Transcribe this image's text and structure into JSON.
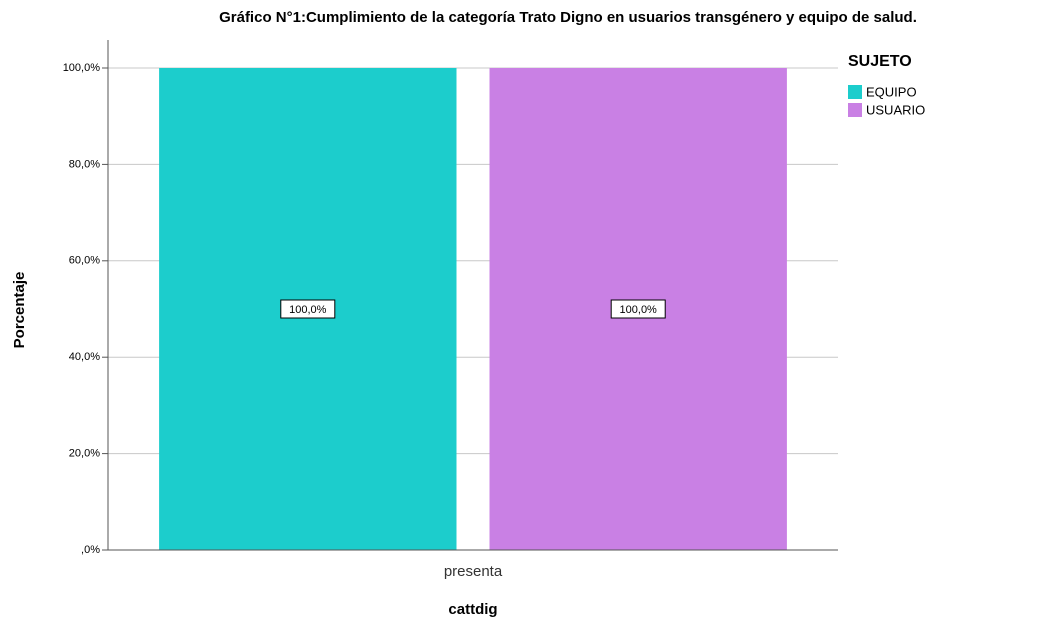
{
  "chart_data": {
    "type": "bar",
    "title": "Gráfico N°1:Cumplimiento de la categoría Trato Digno en usuarios transgénero y equipo de salud.",
    "x_label": "cattdig",
    "y_label": "Porcentaje",
    "categories": [
      "presenta"
    ],
    "legend_title": "SUJETO",
    "series": [
      {
        "name": "EQUIPO",
        "color": "#1ccdcc",
        "values": [
          100
        ],
        "value_labels": [
          "100,0%"
        ]
      },
      {
        "name": "USUARIO",
        "color": "#c980e4",
        "values": [
          100
        ],
        "value_labels": [
          "100,0%"
        ]
      }
    ],
    "ylim": [
      0,
      100
    ],
    "yticks": [
      {
        "value": 0,
        "label": ",0%"
      },
      {
        "value": 20,
        "label": "20,0%"
      },
      {
        "value": 40,
        "label": "40,0%"
      },
      {
        "value": 60,
        "label": "60,0%"
      },
      {
        "value": 80,
        "label": "80,0%"
      },
      {
        "value": 100,
        "label": "100,0%"
      }
    ],
    "grid": true,
    "legend": "right"
  }
}
